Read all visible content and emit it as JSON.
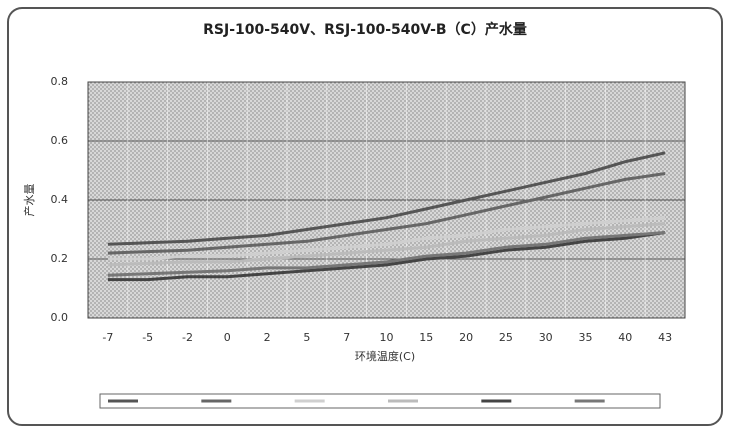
{
  "chart_data": {
    "type": "line",
    "title": "RSJ-100-540V、RSJ-100-540V-B（C）产水量",
    "ylabel": "产水量",
    "xlabel": "环境温度(C)",
    "categories": [
      "-7",
      "-5",
      "-2",
      "0",
      "2",
      "5",
      "7",
      "10",
      "15",
      "20",
      "25",
      "30",
      "35",
      "40",
      "43"
    ],
    "ylim": [
      0,
      0.8
    ],
    "yticks": [
      {
        "value": 0,
        "label": "0.0"
      },
      0.2,
      0.4,
      0.6,
      0.8
    ],
    "grid": true,
    "series": [
      {
        "color": "#555555",
        "values": [
          0.25,
          0.255,
          0.26,
          0.27,
          0.28,
          0.3,
          0.32,
          0.34,
          0.37,
          0.4,
          0.43,
          0.46,
          0.49,
          0.53,
          0.56
        ]
      },
      {
        "color": "#666666",
        "values": [
          0.22,
          0.225,
          0.23,
          0.24,
          0.25,
          0.26,
          0.28,
          0.3,
          0.32,
          0.35,
          0.38,
          0.41,
          0.44,
          0.47,
          0.49
        ]
      },
      {
        "color": "#cfcfcf",
        "values": [
          0.2,
          0.2,
          0.21,
          0.21,
          0.22,
          0.23,
          0.24,
          0.25,
          0.27,
          0.28,
          0.3,
          0.31,
          0.32,
          0.33,
          0.34
        ]
      },
      {
        "color": "#bbbbbb",
        "values": [
          0.18,
          0.185,
          0.19,
          0.19,
          0.2,
          0.21,
          0.22,
          0.23,
          0.24,
          0.26,
          0.27,
          0.28,
          0.3,
          0.31,
          0.32
        ]
      },
      {
        "color": "#444444",
        "values": [
          0.13,
          0.13,
          0.14,
          0.14,
          0.15,
          0.16,
          0.17,
          0.18,
          0.2,
          0.21,
          0.23,
          0.24,
          0.26,
          0.27,
          0.29
        ]
      },
      {
        "color": "#777777",
        "values": [
          0.145,
          0.15,
          0.155,
          0.16,
          0.17,
          0.17,
          0.18,
          0.19,
          0.21,
          0.22,
          0.24,
          0.25,
          0.27,
          0.28,
          0.29
        ]
      }
    ]
  }
}
